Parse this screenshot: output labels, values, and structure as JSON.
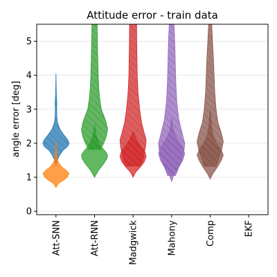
{
  "chart_data": {
    "type": "violin",
    "title": "Attitude error - train data",
    "xlabel": "",
    "ylabel": "angle error [deg]",
    "ylim": [
      -0.1,
      5.5
    ],
    "yticks": [
      0,
      1,
      2,
      3,
      4,
      5
    ],
    "grid": "y",
    "categories": [
      "Att-SNN",
      "Att-RNN",
      "Madgwick",
      "Mahony",
      "Comp",
      "EKF"
    ],
    "series": [
      {
        "color": "#1f77b4",
        "hatched": true,
        "profile": [
          [
            1.35,
            0.02
          ],
          [
            1.5,
            0.1
          ],
          [
            1.65,
            0.28
          ],
          [
            1.8,
            0.55
          ],
          [
            1.9,
            0.88
          ],
          [
            2.0,
            1.0
          ],
          [
            2.1,
            0.9
          ],
          [
            2.25,
            0.6
          ],
          [
            2.4,
            0.32
          ],
          [
            2.6,
            0.12
          ],
          [
            2.8,
            0.06
          ],
          [
            3.0,
            0.05
          ],
          [
            3.2,
            0.07
          ],
          [
            3.4,
            0.03
          ],
          [
            3.7,
            0.015
          ],
          [
            4.05,
            0.0
          ]
        ]
      },
      {
        "color": "#ff7f0e",
        "hatched": false,
        "profile": [
          [
            0.7,
            0.0
          ],
          [
            0.82,
            0.2
          ],
          [
            0.92,
            0.6
          ],
          [
            1.0,
            0.85
          ],
          [
            1.1,
            1.0
          ],
          [
            1.2,
            0.8
          ],
          [
            1.3,
            0.45
          ],
          [
            1.4,
            0.25
          ],
          [
            1.5,
            0.12
          ],
          [
            1.7,
            0.06
          ],
          [
            1.85,
            0.03
          ],
          [
            2.05,
            0.0
          ]
        ]
      },
      {
        "color": "#2ca02c",
        "hatched": false,
        "profile": [
          [
            1.0,
            0.0
          ],
          [
            1.2,
            0.3
          ],
          [
            1.4,
            0.7
          ],
          [
            1.55,
            0.95
          ],
          [
            1.65,
            1.0
          ],
          [
            1.75,
            0.85
          ],
          [
            1.9,
            0.5
          ],
          [
            2.05,
            0.3
          ],
          [
            2.2,
            0.15
          ],
          [
            2.4,
            0.05
          ],
          [
            2.55,
            0.0
          ]
        ]
      },
      {
        "color": "#2ca02c",
        "hatched": true,
        "profile": [
          [
            1.82,
            0.45
          ],
          [
            2.0,
            0.7
          ],
          [
            2.2,
            0.9
          ],
          [
            2.4,
            1.0
          ],
          [
            2.6,
            0.9
          ],
          [
            2.8,
            0.72
          ],
          [
            3.0,
            0.52
          ],
          [
            3.3,
            0.4
          ],
          [
            3.6,
            0.33
          ],
          [
            4.0,
            0.28
          ],
          [
            4.5,
            0.25
          ],
          [
            5.0,
            0.22
          ],
          [
            5.5,
            0.2
          ]
        ]
      },
      {
        "color": "#d62728",
        "hatched": false,
        "profile": [
          [
            1.0,
            0.0
          ],
          [
            1.15,
            0.2
          ],
          [
            1.3,
            0.55
          ],
          [
            1.45,
            0.85
          ],
          [
            1.6,
            1.0
          ],
          [
            1.75,
            0.9
          ],
          [
            1.9,
            0.6
          ],
          [
            2.05,
            0.35
          ],
          [
            2.2,
            0.15
          ],
          [
            2.35,
            0.0
          ]
        ]
      },
      {
        "color": "#d62728",
        "hatched": true,
        "profile": [
          [
            1.33,
            0.55
          ],
          [
            1.5,
            0.75
          ],
          [
            1.7,
            0.85
          ],
          [
            1.9,
            0.95
          ],
          [
            2.1,
            1.0
          ],
          [
            2.3,
            0.85
          ],
          [
            2.6,
            0.65
          ],
          [
            3.0,
            0.5
          ],
          [
            3.5,
            0.38
          ],
          [
            4.0,
            0.32
          ],
          [
            4.5,
            0.3
          ],
          [
            5.0,
            0.28
          ],
          [
            5.5,
            0.27
          ]
        ]
      },
      {
        "color": "#9467bd",
        "hatched": false,
        "profile": [
          [
            0.88,
            0.0
          ],
          [
            1.1,
            0.2
          ],
          [
            1.3,
            0.55
          ],
          [
            1.5,
            0.85
          ],
          [
            1.7,
            1.0
          ],
          [
            1.9,
            0.8
          ],
          [
            2.1,
            0.45
          ],
          [
            2.3,
            0.2
          ],
          [
            2.5,
            0.08
          ],
          [
            2.75,
            0.0
          ]
        ]
      },
      {
        "color": "#9467bd",
        "hatched": true,
        "profile": [
          [
            1.05,
            0.3
          ],
          [
            1.3,
            0.55
          ],
          [
            1.55,
            0.8
          ],
          [
            1.8,
            0.95
          ],
          [
            2.0,
            1.0
          ],
          [
            2.3,
            0.8
          ],
          [
            2.7,
            0.55
          ],
          [
            3.2,
            0.4
          ],
          [
            3.7,
            0.33
          ],
          [
            4.2,
            0.29
          ],
          [
            4.7,
            0.26
          ],
          [
            5.2,
            0.22
          ],
          [
            5.5,
            0.18
          ]
        ]
      },
      {
        "color": "#8c564b",
        "hatched": false,
        "profile": [
          [
            0.95,
            0.0
          ],
          [
            1.1,
            0.2
          ],
          [
            1.3,
            0.55
          ],
          [
            1.5,
            0.85
          ],
          [
            1.65,
            1.0
          ],
          [
            1.8,
            0.85
          ],
          [
            2.0,
            0.5
          ],
          [
            2.2,
            0.25
          ],
          [
            2.5,
            0.1
          ],
          [
            2.8,
            0.04
          ],
          [
            3.0,
            0.0
          ]
        ]
      },
      {
        "color": "#8c564b",
        "hatched": true,
        "profile": [
          [
            1.32,
            0.45
          ],
          [
            1.6,
            0.7
          ],
          [
            1.85,
            0.9
          ],
          [
            2.05,
            1.0
          ],
          [
            2.3,
            0.85
          ],
          [
            2.6,
            0.6
          ],
          [
            3.0,
            0.45
          ],
          [
            3.5,
            0.35
          ],
          [
            4.0,
            0.3
          ],
          [
            4.5,
            0.25
          ],
          [
            5.0,
            0.18
          ],
          [
            5.5,
            0.12
          ]
        ]
      }
    ]
  }
}
